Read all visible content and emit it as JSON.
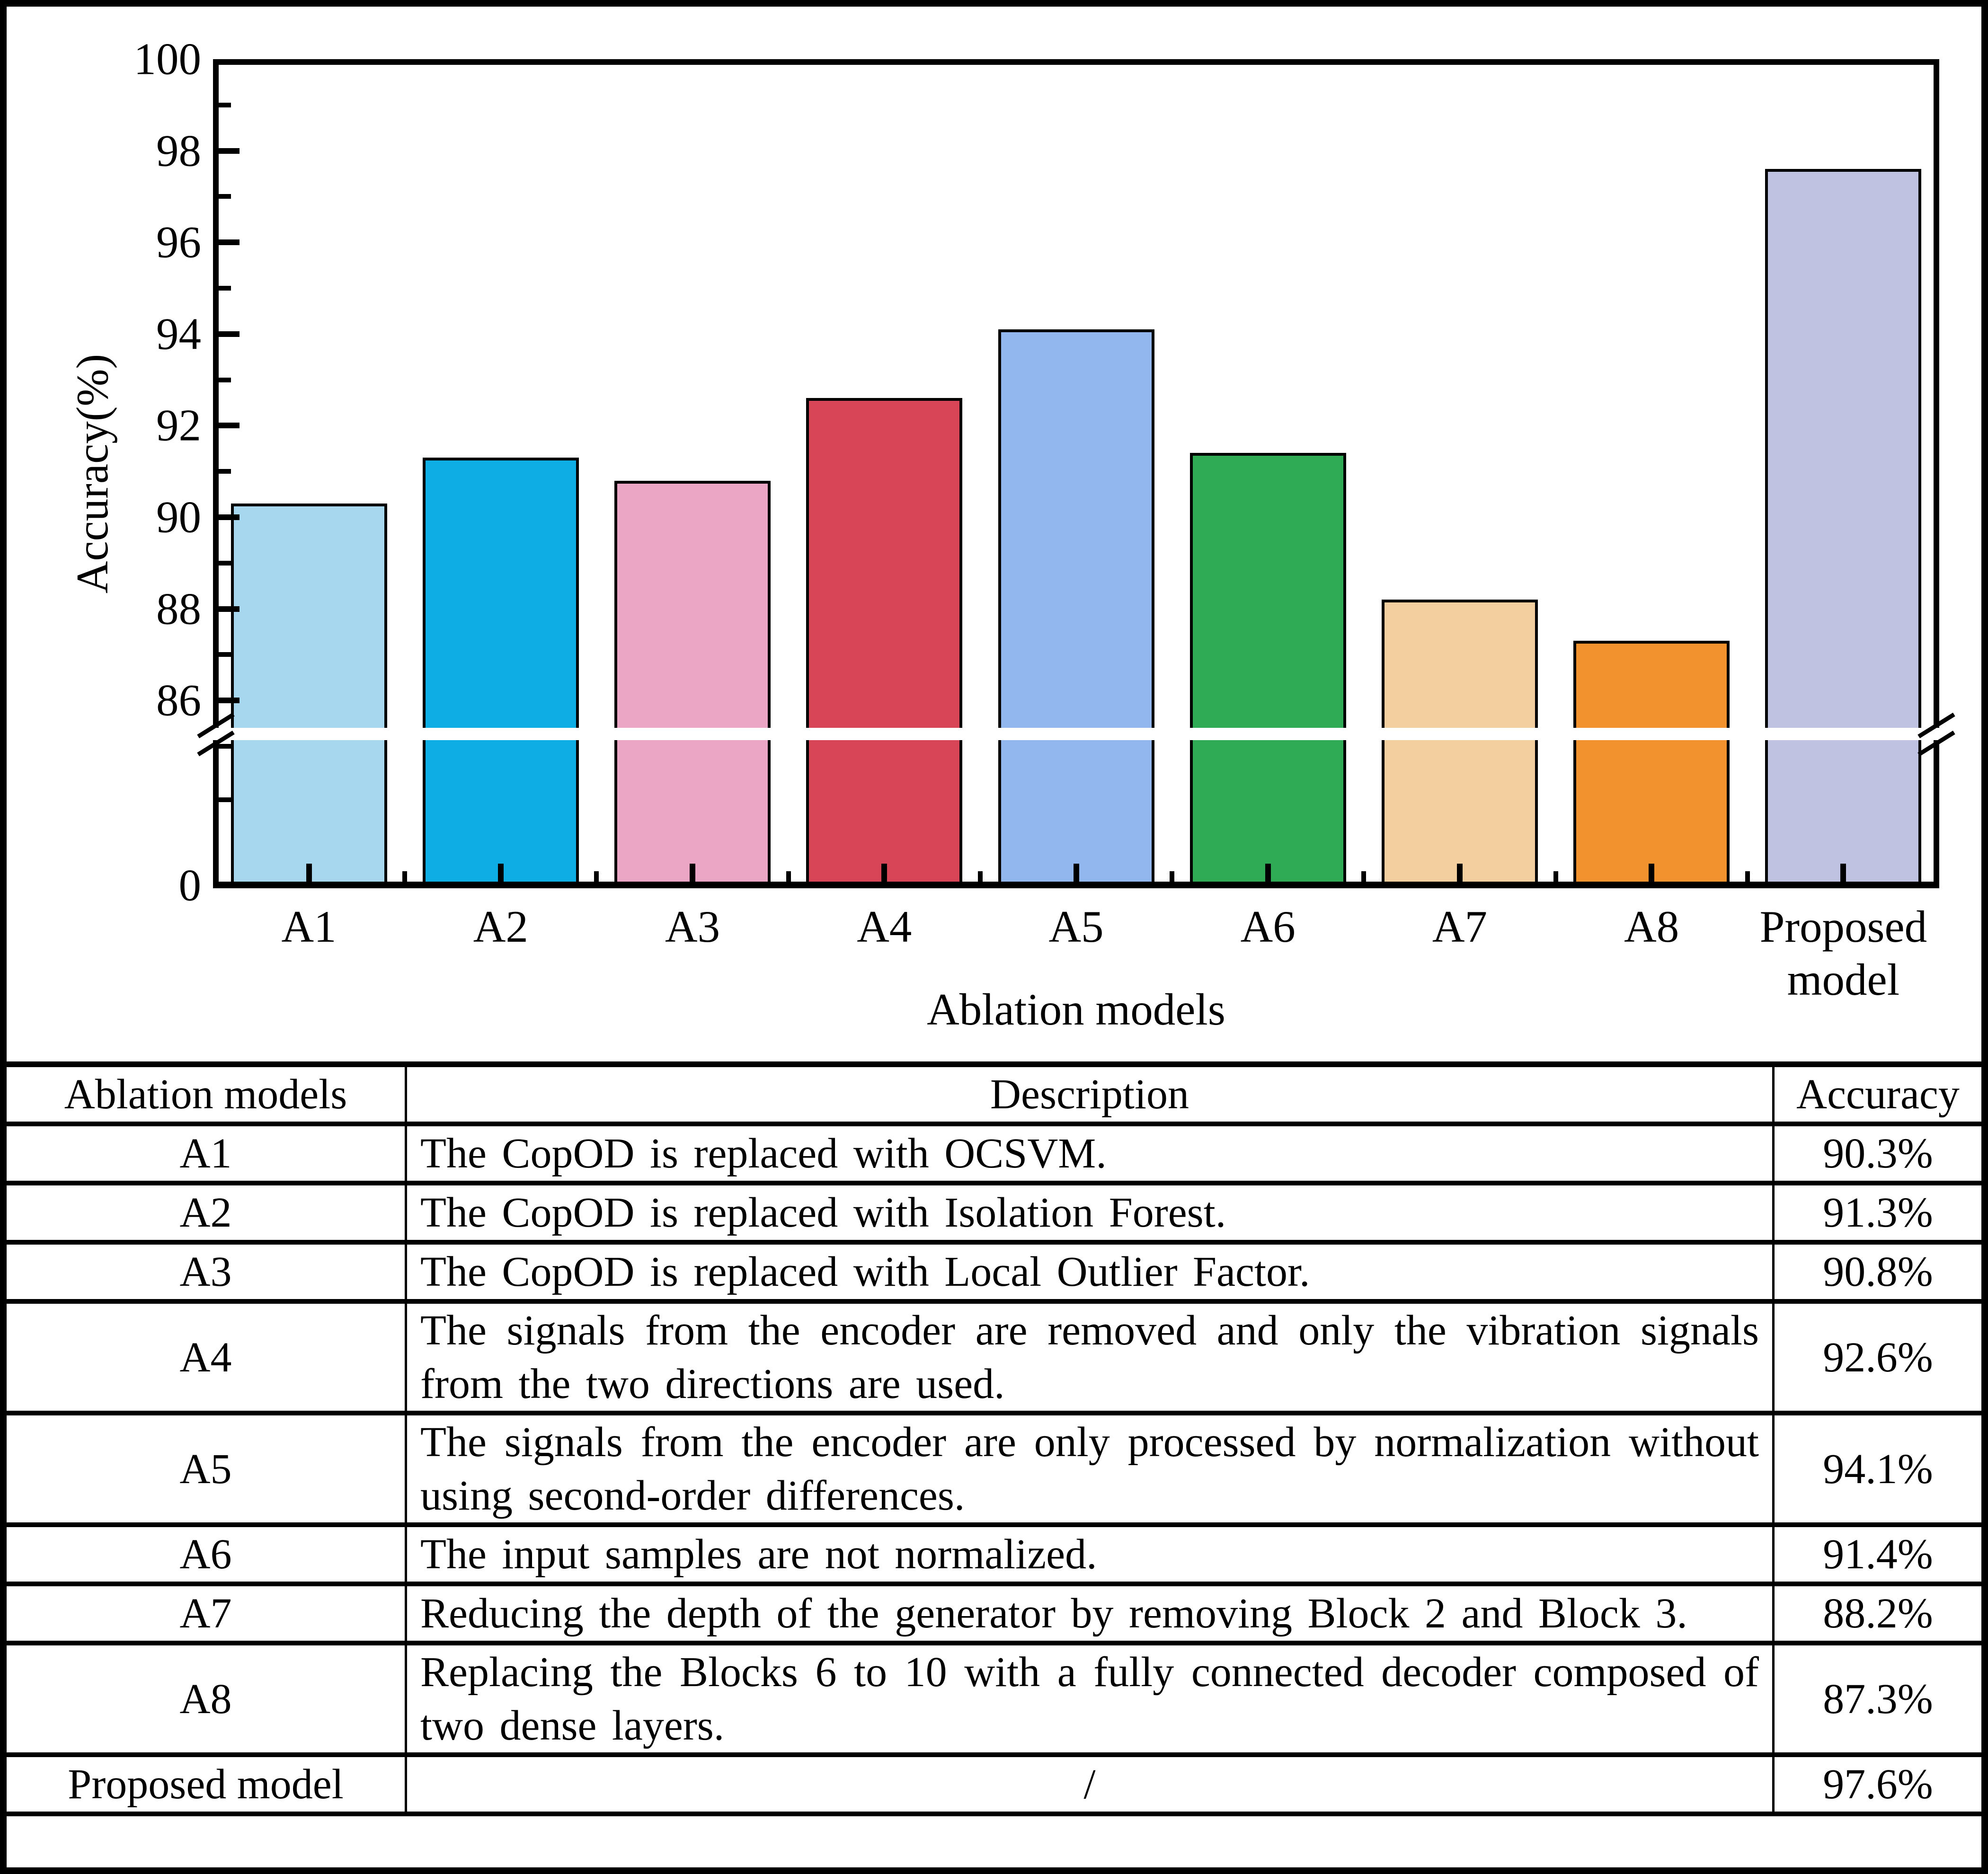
{
  "chart_data": {
    "type": "bar",
    "categories": [
      "A1",
      "A2",
      "A3",
      "A4",
      "A5",
      "A6",
      "A7",
      "A8",
      "Proposed model"
    ],
    "values": [
      90.3,
      91.3,
      90.8,
      92.6,
      94.1,
      91.4,
      88.2,
      87.3,
      97.6
    ],
    "bar_colors": [
      "#a7d7ef",
      "#0eade3",
      "#eba6c5",
      "#d84557",
      "#92b6ee",
      "#2fab55",
      "#f3cfa0",
      "#f2922f",
      "#bfc2e0"
    ],
    "title": "",
    "xlabel": "Ablation models",
    "ylabel": "Accuracy(%)",
    "yticks": [
      100,
      98,
      96,
      94,
      92,
      90,
      88,
      86,
      0
    ],
    "ytick_minor": [
      99,
      97,
      95,
      93,
      91,
      89,
      87,
      85
    ],
    "ylim": [
      0,
      100
    ],
    "axis_break": {
      "present": true,
      "between": [
        0,
        85
      ]
    },
    "grid": "off",
    "legend": "none",
    "bar_edge_color": "#000000"
  },
  "table": {
    "headers": [
      "Ablation models",
      "Description",
      "Accuracy"
    ],
    "rows": [
      {
        "model": "A1",
        "description": "The CopOD is replaced with OCSVM.",
        "accuracy": "90.3%"
      },
      {
        "model": "A2",
        "description": "The CopOD is replaced with Isolation Forest.",
        "accuracy": "91.3%"
      },
      {
        "model": "A3",
        "description": "The CopOD is replaced with Local Outlier Factor.",
        "accuracy": "90.8%"
      },
      {
        "model": "A4",
        "description": "The signals from the encoder are removed and only the vibration signals from the two directions are used.",
        "accuracy": "92.6%"
      },
      {
        "model": "A5",
        "description": "The signals from the encoder are only processed by normalization without using second-order differences.",
        "accuracy": "94.1%"
      },
      {
        "model": "A6",
        "description": "The input samples are not normalized.",
        "accuracy": "91.4%"
      },
      {
        "model": "A7",
        "description": "Reducing the depth of the generator by removing Block 2 and Block 3.",
        "accuracy": "88.2%"
      },
      {
        "model": "A8",
        "description": "Replacing the Blocks 6 to 10 with a fully connected decoder composed of two dense layers.",
        "accuracy": "87.3%"
      },
      {
        "model": "Proposed model",
        "description": "/",
        "accuracy": "97.6%"
      }
    ]
  }
}
